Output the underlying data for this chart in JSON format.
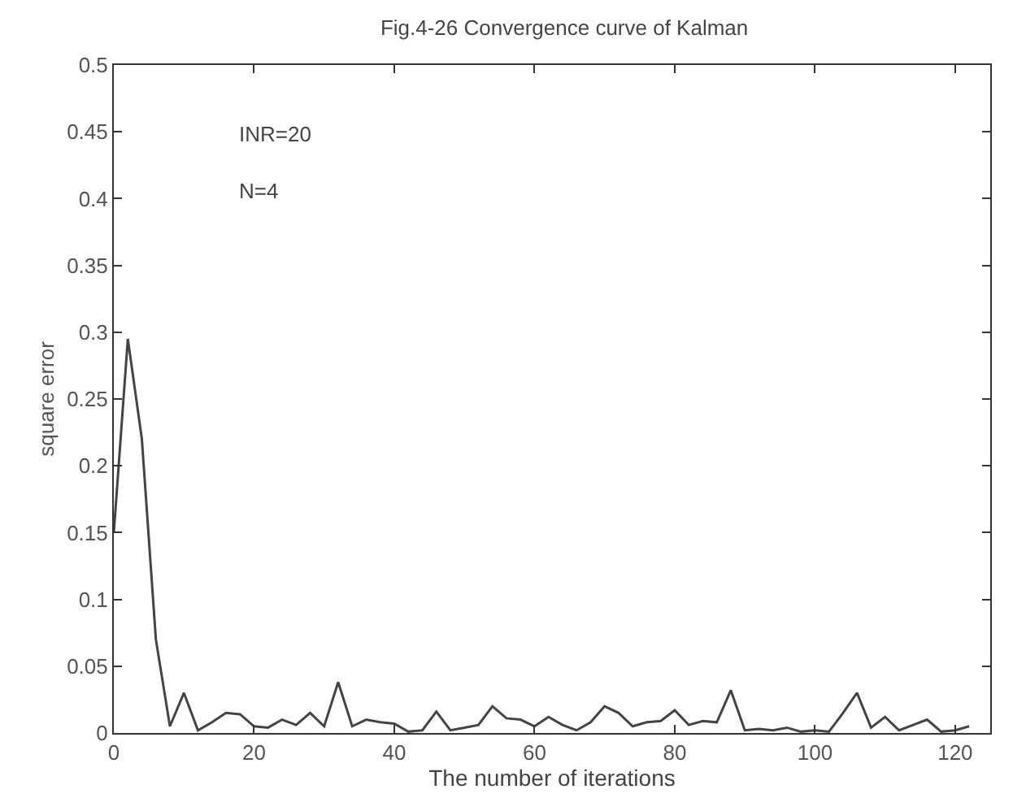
{
  "chart_data": {
    "type": "line",
    "title": "Fig.4-26 Convergence curve of Kalman",
    "xlabel": "The number of iterations",
    "ylabel": "square error",
    "annotations": [
      "INR=20",
      "N=4"
    ],
    "x": [
      0,
      2,
      4,
      6,
      8,
      10,
      12,
      14,
      16,
      18,
      20,
      22,
      24,
      26,
      28,
      30,
      32,
      34,
      36,
      38,
      40,
      42,
      44,
      46,
      48,
      50,
      52,
      54,
      56,
      58,
      60,
      62,
      64,
      66,
      68,
      70,
      72,
      74,
      76,
      78,
      80,
      82,
      84,
      86,
      88,
      90,
      92,
      94,
      96,
      98,
      100,
      102,
      104,
      106,
      108,
      110,
      112,
      114,
      116,
      118,
      120,
      122
    ],
    "series": [
      {
        "color": "#444444",
        "values": [
          0.15,
          0.295,
          0.22,
          0.07,
          0.005,
          0.03,
          0.002,
          0.008,
          0.015,
          0.014,
          0.005,
          0.004,
          0.01,
          0.006,
          0.015,
          0.005,
          0.038,
          0.005,
          0.01,
          0.008,
          0.007,
          0.001,
          0.002,
          0.016,
          0.002,
          0.004,
          0.006,
          0.02,
          0.011,
          0.01,
          0.005,
          0.012,
          0.006,
          0.002,
          0.008,
          0.02,
          0.015,
          0.005,
          0.008,
          0.009,
          0.017,
          0.006,
          0.009,
          0.008,
          0.032,
          0.002,
          0.003,
          0.002,
          0.004,
          0.001,
          0.002,
          0.001,
          0.015,
          0.03,
          0.004,
          0.012,
          0.002,
          0.006,
          0.01,
          0.001,
          0.002,
          0.005
        ]
      }
    ],
    "xlim": [
      0,
      125
    ],
    "xticks": [
      0,
      20,
      40,
      60,
      80,
      100,
      120
    ],
    "ylim": [
      0,
      0.5
    ],
    "yticks": [
      0,
      0.05,
      0.1,
      0.15,
      0.2,
      0.25,
      0.3,
      0.35,
      0.4,
      0.45,
      0.5
    ],
    "marker": "none",
    "line_style": "solid"
  }
}
